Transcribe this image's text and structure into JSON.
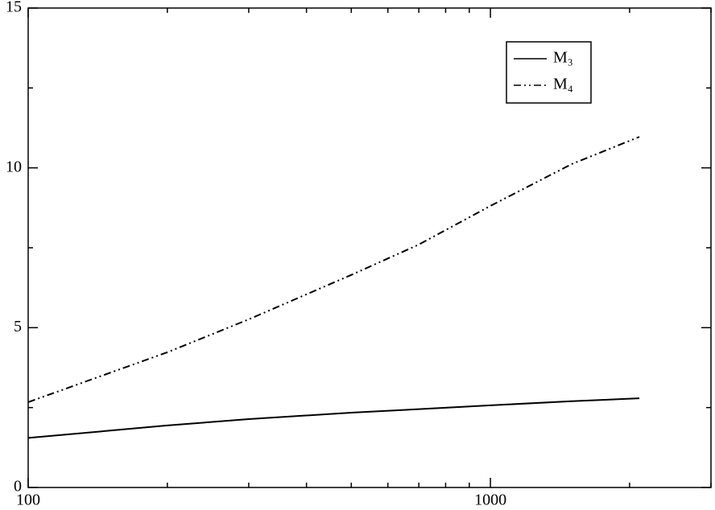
{
  "chart_data": {
    "type": "line",
    "xscale": "log",
    "x": [
      100,
      200,
      300,
      500,
      700,
      1000,
      1500,
      2100
    ],
    "series": [
      {
        "name": "M₃",
        "color": "#000000",
        "dash": "solid",
        "values": [
          1.55,
          1.94,
          2.14,
          2.34,
          2.45,
          2.57,
          2.7,
          2.79
        ]
      },
      {
        "name": "M₄",
        "color": "#000000",
        "dash": "dash-dot-dot",
        "values": [
          2.67,
          4.23,
          5.26,
          6.65,
          7.6,
          8.81,
          10.12,
          10.97
        ]
      }
    ],
    "xlim": [
      100,
      3000
    ],
    "xticks": [
      100,
      1000
    ],
    "xminorticks": [
      200,
      300,
      400,
      500,
      600,
      700,
      800,
      900,
      2000,
      3000
    ],
    "ylim": [
      0,
      15
    ],
    "yticks": [
      0,
      5,
      10,
      15
    ],
    "yminorticks": [
      2.5,
      7.5,
      12.5
    ],
    "legend": "top-right"
  }
}
